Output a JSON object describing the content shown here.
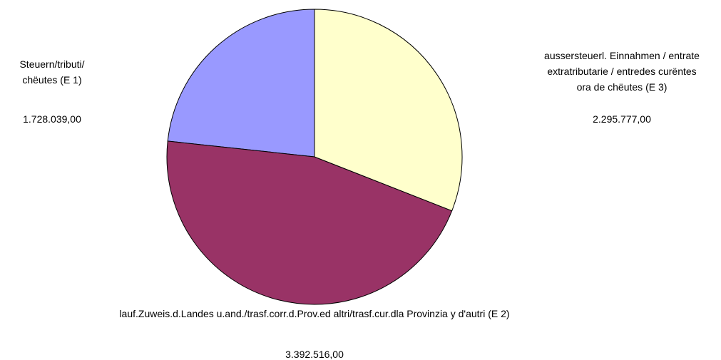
{
  "chart_data": {
    "type": "pie",
    "categories": [
      "Steuern/tributi/ chëutes (E 1)",
      "lauf.Zuweis.d.Landes u.and./trasf.corr.d.Prov.ed altri/trasf.cur.dla Provinzia y d'autri (E 2)",
      "aussersteuerl. Einnahmen / entrate extratributarie / entredes curëntes ora de chëutes (E 3)"
    ],
    "values": [
      1728039,
      3392516,
      2295777
    ],
    "value_labels": [
      "1.728.039,00",
      "3.392.516,00",
      "2.295.777,00"
    ],
    "colors": [
      "#9999ff",
      "#993366",
      "#ffffcc"
    ],
    "counterclock": true
  }
}
